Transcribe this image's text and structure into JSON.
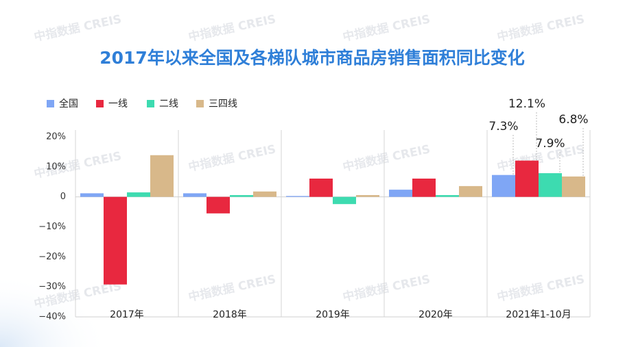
{
  "chart_data": {
    "type": "bar",
    "title": "2017年以来全国及各梯队城市商品房销售面积同比变化",
    "watermark": "中指数据 CREIS",
    "categories": [
      "2017年",
      "2018年",
      "2019年",
      "2020年",
      "2021年1-10月"
    ],
    "series": [
      {
        "name": "全国",
        "color": "#7fa6f5",
        "values": [
          1.2,
          1.2,
          0.3,
          2.4,
          7.3
        ],
        "value_labels": [
          null,
          null,
          null,
          null,
          "7.3%"
        ]
      },
      {
        "name": "一线",
        "color": "#e8283f",
        "values": [
          -29.2,
          -5.5,
          6.1,
          6.1,
          12.1
        ],
        "value_labels": [
          null,
          null,
          null,
          null,
          "12.1%"
        ]
      },
      {
        "name": "二线",
        "color": "#3ddbb0",
        "values": [
          1.5,
          0.6,
          -2.4,
          0.6,
          7.9
        ],
        "value_labels": [
          null,
          null,
          null,
          null,
          "7.9%"
        ]
      },
      {
        "name": "三四线",
        "color": "#d8b88a",
        "values": [
          13.9,
          1.8,
          0.6,
          3.6,
          6.8
        ],
        "value_labels": [
          null,
          null,
          null,
          null,
          "6.8%"
        ]
      }
    ],
    "ylim": [
      -40,
      20
    ],
    "yticks": [
      {
        "value": -40,
        "label": "−40%"
      },
      {
        "value": -30,
        "label": "−30%"
      },
      {
        "value": -20,
        "label": "−20%"
      },
      {
        "value": -10,
        "label": "−10%"
      },
      0,
      {
        "value": 10,
        "label": "10%"
      },
      {
        "value": 20,
        "label": "20%"
      }
    ],
    "grid": false
  }
}
